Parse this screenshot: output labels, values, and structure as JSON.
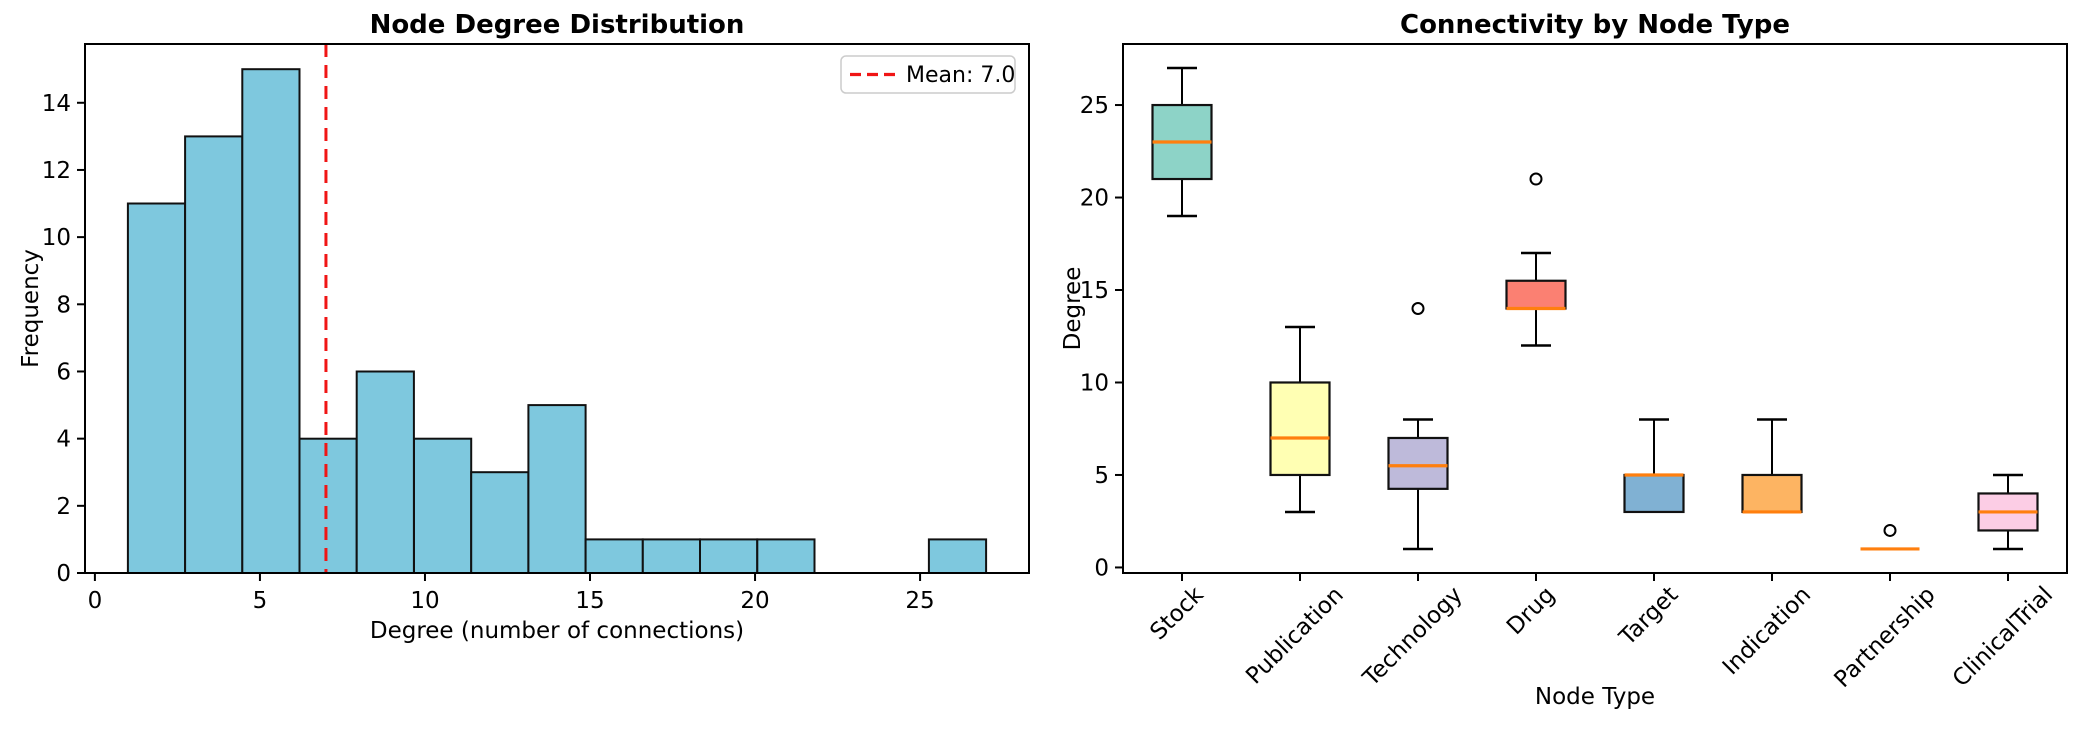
{
  "figure": {
    "background_color": "#ffffff"
  },
  "chart_data": [
    {
      "type": "bar",
      "subtype": "histogram",
      "title": "Node Degree Distribution",
      "xlabel": "Degree (number of connections)",
      "ylabel": "Frequency",
      "bin_edges": [
        1,
        2.733,
        4.467,
        6.2,
        7.933,
        9.667,
        11.4,
        13.133,
        14.867,
        16.6,
        18.333,
        20.067,
        21.8,
        23.533,
        25.267,
        27
      ],
      "frequencies": [
        11,
        13,
        15,
        4,
        6,
        4,
        3,
        5,
        1,
        1,
        1,
        1,
        0,
        0,
        1
      ],
      "mean_value": 7.0,
      "legend_label": "Mean: 7.0",
      "legend_position": "upper right",
      "x_ticks": [
        0,
        5,
        10,
        15,
        20,
        25
      ],
      "y_ticks": [
        0,
        2,
        4,
        6,
        8,
        10,
        12,
        14
      ],
      "xlim": [
        -0.3,
        28.3
      ],
      "ylim": [
        0,
        15.75
      ],
      "grid": false,
      "colors": {
        "bar_fill": "#7EC8DE",
        "bar_edge": "#111111",
        "mean_line": "#F01515"
      }
    },
    {
      "type": "boxplot",
      "title": "Connectivity by Node Type",
      "xlabel": "Node Type",
      "ylabel": "Degree",
      "categories": [
        "Stock",
        "Publication",
        "Technology",
        "Drug",
        "Target",
        "Indication",
        "Partnership",
        "ClinicalTrial"
      ],
      "series": [
        {
          "name": "Stock",
          "whisker_low": 19,
          "q1": 21,
          "median": 23,
          "q3": 25,
          "whisker_high": 27,
          "outliers": [],
          "fill_color": "#8DD3C7"
        },
        {
          "name": "Publication",
          "whisker_low": 3,
          "q1": 5,
          "median": 7,
          "q3": 10,
          "whisker_high": 13,
          "outliers": [],
          "fill_color": "#FFFFB3"
        },
        {
          "name": "Technology",
          "whisker_low": 1,
          "q1": 4.25,
          "median": 5.5,
          "q3": 7,
          "whisker_high": 8,
          "outliers": [
            14
          ],
          "fill_color": "#BEBADA"
        },
        {
          "name": "Drug",
          "whisker_low": 12,
          "q1": 14,
          "median": 14,
          "q3": 15.5,
          "whisker_high": 17,
          "outliers": [
            21
          ],
          "fill_color": "#FB8072"
        },
        {
          "name": "Target",
          "whisker_low": 3,
          "q1": 3,
          "median": 5,
          "q3": 5,
          "whisker_high": 8,
          "outliers": [],
          "fill_color": "#80B1D3"
        },
        {
          "name": "Indication",
          "whisker_low": 3,
          "q1": 3,
          "median": 3,
          "q3": 5,
          "whisker_high": 8,
          "outliers": [],
          "fill_color": "#FDB462"
        },
        {
          "name": "Partnership",
          "whisker_low": 1,
          "q1": 1,
          "median": 1,
          "q3": 1,
          "whisker_high": 1,
          "outliers": [
            2
          ],
          "fill_color": "#B3DE69"
        },
        {
          "name": "ClinicalTrial",
          "whisker_low": 1,
          "q1": 2,
          "median": 3,
          "q3": 4,
          "whisker_high": 5,
          "outliers": [],
          "fill_color": "#FCCDE5"
        }
      ],
      "y_ticks": [
        0,
        5,
        10,
        15,
        20,
        25
      ],
      "ylim": [
        -0.3,
        28.3
      ],
      "grid": false,
      "tick_label_rotation": 45,
      "colors": {
        "median_line": "#FF7F0E",
        "box_edge": "#111111"
      }
    }
  ]
}
